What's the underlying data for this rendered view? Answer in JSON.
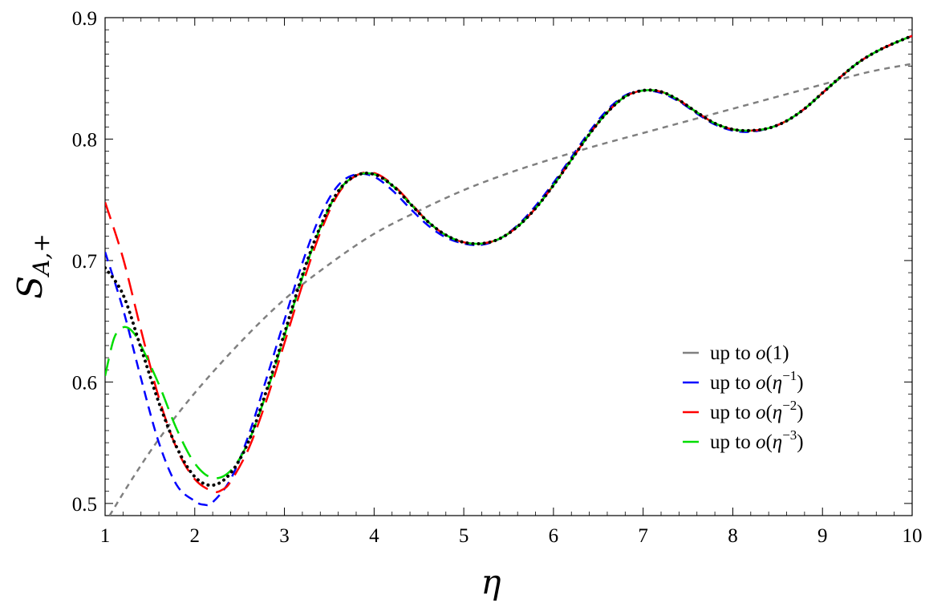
{
  "chart_data": {
    "type": "line",
    "xlabel": "η",
    "ylabel_main": "S",
    "ylabel_sub": "A,+",
    "xlim": [
      1,
      10
    ],
    "ylim": [
      0.49,
      0.9
    ],
    "x_ticks": [
      1,
      2,
      3,
      4,
      5,
      6,
      7,
      8,
      9,
      10
    ],
    "x_tick_labels": [
      "1",
      "2",
      "3",
      "4",
      "5",
      "6",
      "7",
      "8",
      "9",
      "10"
    ],
    "y_ticks": [
      0.5,
      0.6,
      0.7,
      0.8,
      0.9
    ],
    "y_tick_labels": [
      "0.5",
      "0.6",
      "0.7",
      "0.8",
      "0.9"
    ],
    "legend": {
      "position": "bottom-right",
      "entries": [
        {
          "prefix": "up to ",
          "var": "o",
          "open": "(",
          "base": "1",
          "sup": "",
          "close": ")",
          "color": "#808080"
        },
        {
          "prefix": "up to ",
          "var": "o",
          "open": "(",
          "base": "η",
          "sup": "−1",
          "close": ")",
          "color": "#0000ff"
        },
        {
          "prefix": "up to ",
          "var": "o",
          "open": "(",
          "base": "η",
          "sup": "−2",
          "close": ")",
          "color": "#ff0000"
        },
        {
          "prefix": "up to ",
          "var": "o",
          "open": "(",
          "base": "η",
          "sup": "−3",
          "close": ")",
          "color": "#00dd00"
        }
      ]
    },
    "series": [
      {
        "key": "exact",
        "color": "#000000",
        "style": "dotted",
        "x": [
          1.0,
          1.2,
          1.4,
          1.6,
          1.8,
          2.0,
          2.2,
          2.4,
          2.6,
          2.8,
          3.0,
          3.2,
          3.4,
          3.6,
          3.8,
          4.0,
          4.2,
          4.4,
          4.6,
          4.8,
          5.0,
          5.2,
          5.4,
          5.6,
          5.8,
          6.0,
          6.2,
          6.4,
          6.6,
          6.8,
          7.0,
          7.2,
          7.4,
          7.6,
          7.8,
          8.0,
          8.2,
          8.4,
          8.6,
          8.8,
          9.0,
          9.2,
          9.4,
          9.6,
          9.8,
          10.0
        ],
        "y": [
          0.694,
          0.672,
          0.628,
          0.583,
          0.546,
          0.522,
          0.515,
          0.525,
          0.551,
          0.593,
          0.64,
          0.688,
          0.728,
          0.757,
          0.77,
          0.771,
          0.762,
          0.747,
          0.732,
          0.721,
          0.715,
          0.714,
          0.718,
          0.728,
          0.743,
          0.762,
          0.783,
          0.804,
          0.822,
          0.835,
          0.84,
          0.839,
          0.832,
          0.822,
          0.813,
          0.808,
          0.807,
          0.809,
          0.815,
          0.825,
          0.838,
          0.851,
          0.863,
          0.872,
          0.879,
          0.885
        ]
      },
      {
        "key": "o1",
        "color": "#808080",
        "style": "short-dash",
        "x": [
          1.05,
          1.3,
          1.6,
          2.0,
          2.5,
          3.0,
          3.5,
          4.0,
          4.5,
          5.0,
          5.5,
          6.0,
          6.5,
          7.0,
          7.5,
          8.0,
          8.5,
          9.0,
          9.5,
          10.0
        ],
        "y": [
          0.49,
          0.52,
          0.553,
          0.591,
          0.632,
          0.668,
          0.697,
          0.722,
          0.741,
          0.758,
          0.772,
          0.784,
          0.795,
          0.805,
          0.815,
          0.825,
          0.835,
          0.845,
          0.855,
          0.862
        ]
      },
      {
        "key": "o_eta1",
        "color": "#0000ff",
        "style": "dash",
        "x": [
          1.0,
          1.2,
          1.4,
          1.6,
          1.8,
          2.0,
          2.1,
          2.2,
          2.4,
          2.6,
          2.8,
          3.0,
          3.2,
          3.4,
          3.6,
          3.8,
          4.0,
          4.2,
          4.4,
          4.6,
          4.8,
          5.0,
          5.2,
          5.4,
          5.6,
          5.8,
          6.0,
          6.2,
          6.4,
          6.6,
          6.8,
          7.0,
          7.2,
          7.4,
          7.6,
          7.8,
          8.0,
          8.2,
          8.4,
          8.6,
          8.8,
          9.0,
          9.2,
          9.4,
          9.6,
          9.8,
          10.0
        ],
        "y": [
          0.707,
          0.66,
          0.603,
          0.55,
          0.515,
          0.502,
          0.499,
          0.501,
          0.52,
          0.556,
          0.603,
          0.651,
          0.698,
          0.737,
          0.762,
          0.771,
          0.769,
          0.758,
          0.743,
          0.729,
          0.719,
          0.714,
          0.713,
          0.718,
          0.729,
          0.745,
          0.764,
          0.785,
          0.806,
          0.824,
          0.836,
          0.84,
          0.838,
          0.831,
          0.821,
          0.812,
          0.807,
          0.806,
          0.809,
          0.815,
          0.825,
          0.838,
          0.851,
          0.863,
          0.872,
          0.879,
          0.885
        ]
      },
      {
        "key": "o_eta2",
        "color": "#ff0000",
        "style": "long-dash",
        "x": [
          1.0,
          1.2,
          1.4,
          1.6,
          1.8,
          2.0,
          2.2,
          2.3,
          2.4,
          2.6,
          2.8,
          3.0,
          3.2,
          3.4,
          3.6,
          3.8,
          4.0,
          4.2,
          4.4,
          4.6,
          4.8,
          5.0,
          5.2,
          5.4,
          5.6,
          5.8,
          6.0,
          6.2,
          6.4,
          6.6,
          6.8,
          7.0,
          7.2,
          7.4,
          7.6,
          7.8,
          8.0,
          8.2,
          8.4,
          8.6,
          8.8,
          9.0,
          9.2,
          9.4,
          9.6,
          9.8,
          10.0
        ],
        "y": [
          0.748,
          0.702,
          0.643,
          0.587,
          0.545,
          0.52,
          0.51,
          0.511,
          0.518,
          0.545,
          0.585,
          0.632,
          0.68,
          0.723,
          0.755,
          0.77,
          0.772,
          0.763,
          0.748,
          0.732,
          0.721,
          0.715,
          0.714,
          0.718,
          0.728,
          0.743,
          0.762,
          0.783,
          0.804,
          0.822,
          0.835,
          0.84,
          0.839,
          0.832,
          0.822,
          0.813,
          0.808,
          0.807,
          0.809,
          0.815,
          0.825,
          0.838,
          0.851,
          0.863,
          0.872,
          0.879,
          0.885
        ]
      },
      {
        "key": "o_eta3",
        "color": "#00dd00",
        "style": "long-dash",
        "x": [
          1.0,
          1.1,
          1.2,
          1.3,
          1.4,
          1.6,
          1.8,
          2.0,
          2.2,
          2.4,
          2.6,
          2.8,
          3.0,
          3.2,
          3.4,
          3.6,
          3.8,
          4.0,
          4.2,
          4.4,
          4.6,
          4.8,
          5.0,
          5.2,
          5.4,
          5.6,
          5.8,
          6.0,
          6.2,
          6.4,
          6.6,
          6.8,
          7.0,
          7.2,
          7.4,
          7.6,
          7.8,
          8.0,
          8.2,
          8.4,
          8.6,
          8.8,
          9.0,
          9.2,
          9.4,
          9.6,
          9.8,
          10.0
        ],
        "y": [
          0.605,
          0.636,
          0.645,
          0.642,
          0.63,
          0.598,
          0.561,
          0.533,
          0.521,
          0.527,
          0.551,
          0.591,
          0.638,
          0.686,
          0.727,
          0.757,
          0.77,
          0.771,
          0.762,
          0.747,
          0.732,
          0.721,
          0.715,
          0.714,
          0.718,
          0.728,
          0.743,
          0.762,
          0.783,
          0.804,
          0.822,
          0.835,
          0.84,
          0.839,
          0.832,
          0.822,
          0.813,
          0.808,
          0.807,
          0.809,
          0.815,
          0.825,
          0.838,
          0.851,
          0.863,
          0.872,
          0.879,
          0.885
        ]
      }
    ]
  }
}
